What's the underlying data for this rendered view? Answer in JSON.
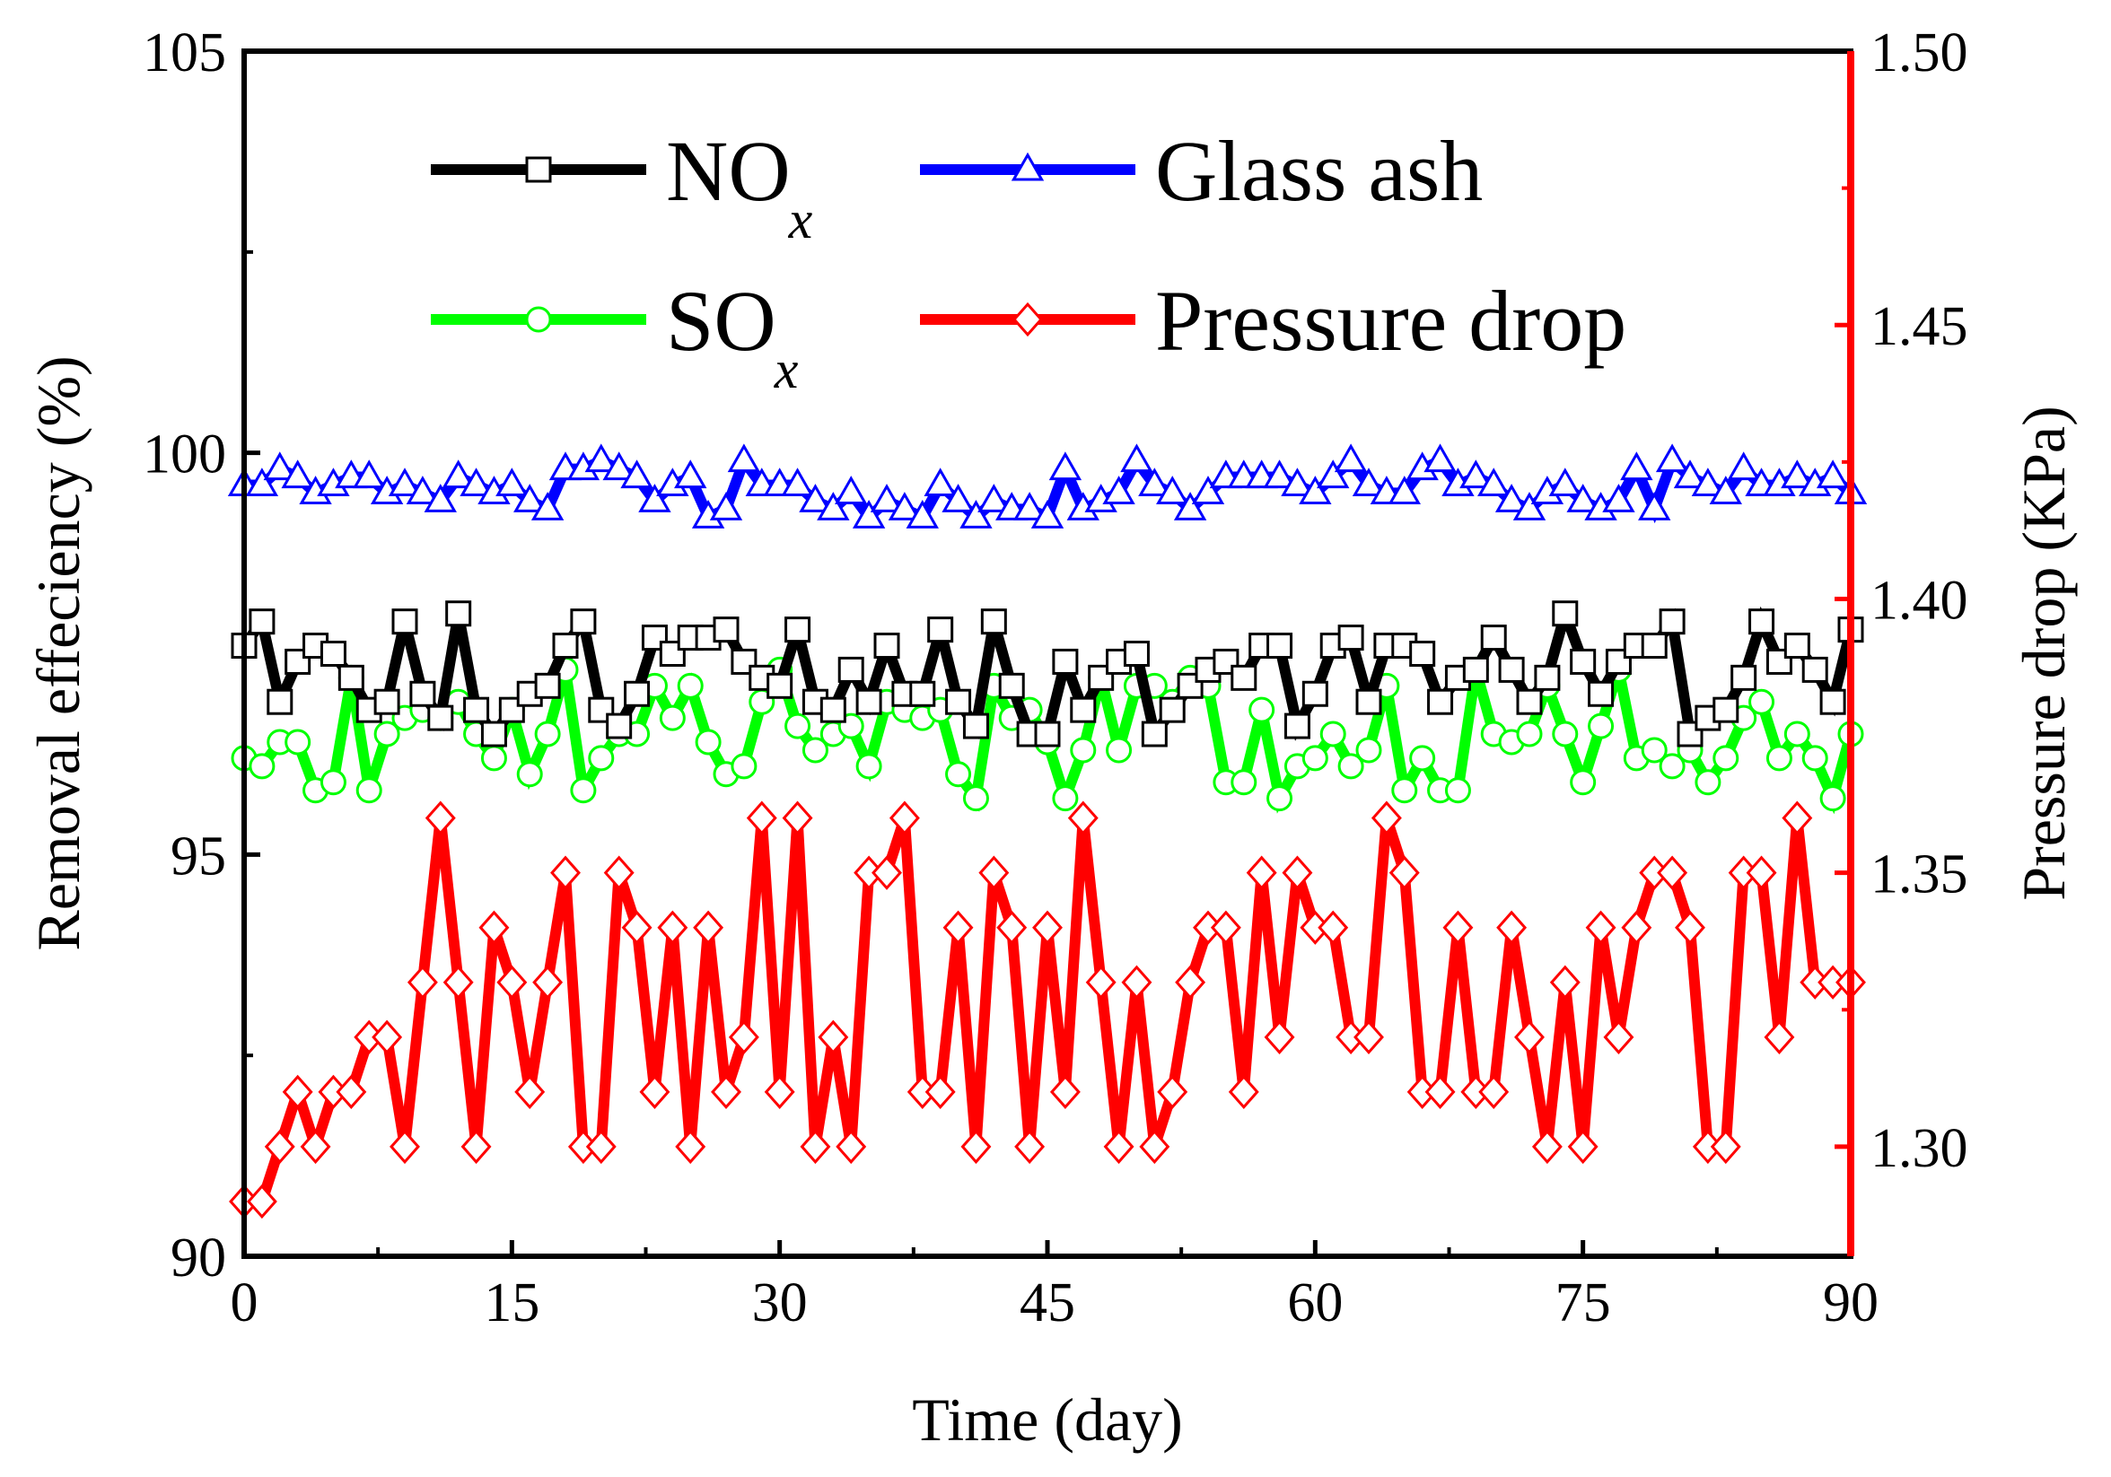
{
  "chart_data": {
    "type": "line",
    "xlabel": "Time (day)",
    "ylabel": "Removal effeciency (%)",
    "y2label": "Pressure drop (KPa)",
    "xlim": [
      0,
      90
    ],
    "ylim": [
      90,
      105
    ],
    "y2lim": [
      1.28,
      1.5
    ],
    "xticks": [
      "0",
      "15",
      "30",
      "45",
      "60",
      "75",
      "90"
    ],
    "yticks": [
      "90",
      "95",
      "100",
      "105"
    ],
    "y2ticks": [
      "1.30",
      "1.35",
      "1.40",
      "1.45",
      "1.50"
    ],
    "legend_position": "top",
    "x": [
      0,
      1,
      2,
      3,
      4,
      5,
      6,
      7,
      8,
      9,
      10,
      11,
      12,
      13,
      14,
      15,
      16,
      17,
      18,
      19,
      20,
      21,
      22,
      23,
      24,
      25,
      26,
      27,
      28,
      29,
      30,
      31,
      32,
      33,
      34,
      35,
      36,
      37,
      38,
      39,
      40,
      41,
      42,
      43,
      44,
      45,
      46,
      47,
      48,
      49,
      50,
      51,
      52,
      53,
      54,
      55,
      56,
      57,
      58,
      59,
      60,
      61,
      62,
      63,
      64,
      65,
      66,
      67,
      68,
      69,
      70,
      71,
      72,
      73,
      74,
      75,
      76,
      77,
      78,
      79,
      80,
      81,
      82,
      83,
      84,
      85,
      86,
      87,
      88,
      89,
      90
    ],
    "series": [
      {
        "name": "NOx",
        "label_main": "NO",
        "label_sub": "x",
        "axis": "left",
        "color": "#000000",
        "marker": "square",
        "values": [
          97.6,
          97.9,
          96.9,
          97.4,
          97.6,
          97.5,
          97.2,
          96.8,
          96.9,
          97.9,
          97.0,
          96.7,
          98.0,
          96.8,
          96.5,
          96.8,
          97.0,
          97.1,
          97.6,
          97.9,
          96.8,
          96.6,
          97.0,
          97.7,
          97.5,
          97.7,
          97.7,
          97.8,
          97.4,
          97.2,
          97.1,
          97.8,
          96.9,
          96.8,
          97.3,
          96.9,
          97.6,
          97.0,
          97.0,
          97.8,
          96.9,
          96.6,
          97.9,
          97.1,
          96.5,
          96.5,
          97.4,
          96.8,
          97.2,
          97.4,
          97.5,
          96.5,
          96.8,
          97.1,
          97.3,
          97.4,
          97.2,
          97.6,
          97.6,
          96.6,
          97.0,
          97.6,
          97.7,
          96.9,
          97.6,
          97.6,
          97.5,
          96.9,
          97.2,
          97.3,
          97.7,
          97.3,
          96.9,
          97.2,
          98.0,
          97.4,
          97.0,
          97.4,
          97.6,
          97.6,
          97.9,
          96.5,
          96.7,
          96.8,
          97.2,
          97.9,
          97.4,
          97.6,
          97.3,
          96.9,
          97.8
        ]
      },
      {
        "name": "Glass ash",
        "label_main": "Glass ash",
        "label_sub": "",
        "axis": "left",
        "color": "#0000ff",
        "marker": "triangle",
        "values": [
          99.6,
          99.6,
          99.8,
          99.7,
          99.5,
          99.6,
          99.7,
          99.7,
          99.5,
          99.6,
          99.5,
          99.4,
          99.7,
          99.6,
          99.5,
          99.6,
          99.4,
          99.3,
          99.8,
          99.8,
          99.9,
          99.8,
          99.7,
          99.4,
          99.6,
          99.7,
          99.2,
          99.3,
          99.9,
          99.6,
          99.6,
          99.6,
          99.4,
          99.3,
          99.5,
          99.2,
          99.4,
          99.3,
          99.2,
          99.6,
          99.4,
          99.2,
          99.4,
          99.3,
          99.3,
          99.2,
          99.8,
          99.3,
          99.4,
          99.5,
          99.9,
          99.6,
          99.5,
          99.3,
          99.5,
          99.7,
          99.7,
          99.7,
          99.7,
          99.6,
          99.5,
          99.7,
          99.9,
          99.6,
          99.5,
          99.5,
          99.8,
          99.9,
          99.6,
          99.7,
          99.6,
          99.4,
          99.3,
          99.5,
          99.6,
          99.4,
          99.3,
          99.4,
          99.8,
          99.3,
          99.9,
          99.7,
          99.6,
          99.5,
          99.8,
          99.6,
          99.6,
          99.7,
          99.6,
          99.7,
          99.5
        ]
      },
      {
        "name": "SOx",
        "label_main": "SO",
        "label_sub": "x",
        "axis": "left",
        "color": "#00ff00",
        "marker": "circle",
        "values": [
          96.2,
          96.1,
          96.4,
          96.4,
          95.8,
          95.9,
          97.2,
          95.8,
          96.5,
          96.7,
          96.8,
          96.7,
          96.9,
          96.5,
          96.2,
          96.8,
          96.0,
          96.5,
          97.3,
          95.8,
          96.2,
          96.5,
          96.5,
          97.1,
          96.7,
          97.1,
          96.4,
          96.0,
          96.1,
          96.9,
          97.3,
          96.6,
          96.3,
          96.5,
          96.6,
          96.1,
          96.9,
          96.8,
          96.7,
          96.8,
          96.0,
          95.7,
          97.1,
          96.7,
          96.8,
          96.4,
          95.7,
          96.3,
          97.2,
          96.3,
          97.1,
          97.1,
          96.9,
          97.2,
          97.1,
          95.9,
          95.9,
          96.8,
          95.7,
          96.1,
          96.2,
          96.5,
          96.1,
          96.3,
          97.1,
          95.8,
          96.2,
          95.8,
          95.8,
          97.3,
          96.5,
          96.4,
          96.5,
          97.1,
          96.5,
          95.9,
          96.6,
          97.3,
          96.2,
          96.3,
          96.1,
          96.3,
          95.9,
          96.2,
          96.7,
          96.9,
          96.2,
          96.5,
          96.2,
          95.7,
          96.5
        ]
      },
      {
        "name": "Pressure drop",
        "label_main": "Pressure drop",
        "label_sub": "",
        "axis": "right",
        "color": "#ff0000",
        "marker": "diamond",
        "values": [
          1.29,
          1.29,
          1.3,
          1.31,
          1.3,
          1.31,
          1.31,
          1.32,
          1.32,
          1.3,
          1.33,
          1.36,
          1.33,
          1.3,
          1.34,
          1.33,
          1.31,
          1.33,
          1.35,
          1.3,
          1.3,
          1.35,
          1.34,
          1.31,
          1.34,
          1.3,
          1.34,
          1.31,
          1.32,
          1.36,
          1.31,
          1.36,
          1.3,
          1.32,
          1.3,
          1.35,
          1.35,
          1.36,
          1.31,
          1.31,
          1.34,
          1.3,
          1.35,
          1.34,
          1.3,
          1.34,
          1.31,
          1.36,
          1.33,
          1.3,
          1.33,
          1.3,
          1.31,
          1.33,
          1.34,
          1.34,
          1.31,
          1.35,
          1.32,
          1.35,
          1.34,
          1.34,
          1.32,
          1.32,
          1.36,
          1.35,
          1.31,
          1.31,
          1.34,
          1.31,
          1.31,
          1.34,
          1.32,
          1.3,
          1.33,
          1.3,
          1.34,
          1.32,
          1.34,
          1.35,
          1.35,
          1.34,
          1.3,
          1.3,
          1.35,
          1.35,
          1.32,
          1.36,
          1.33,
          1.33,
          1.33
        ]
      }
    ]
  }
}
